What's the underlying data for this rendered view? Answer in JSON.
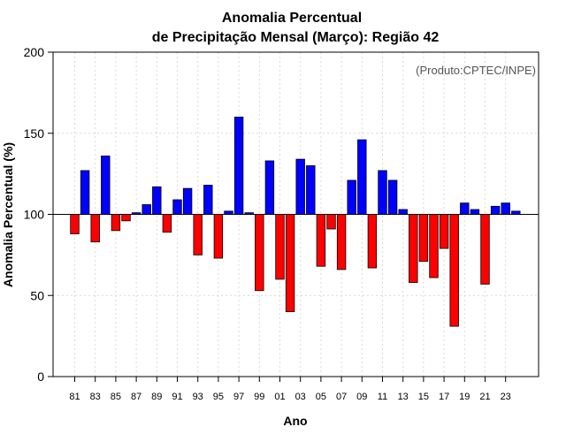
{
  "chart_data": {
    "type": "bar",
    "title_line1": "Anomalia Percentual",
    "title_line2": "de Precipitação Mensal (Março): Região 42",
    "xlabel": "Ano",
    "ylabel": "Anomalia Percentual (%)",
    "credit": "(Produto:CPTEC/INPE)",
    "baseline": 100,
    "ylim": [
      0,
      200
    ],
    "yticks": [
      0,
      50,
      100,
      150,
      200
    ],
    "xtick_labels": [
      "81",
      "83",
      "85",
      "87",
      "89",
      "91",
      "93",
      "95",
      "97",
      "99",
      "01",
      "03",
      "05",
      "07",
      "09",
      "11",
      "13",
      "15",
      "17",
      "19",
      "21",
      "23"
    ],
    "categories": [
      "1981",
      "1982",
      "1983",
      "1984",
      "1985",
      "1986",
      "1987",
      "1988",
      "1989",
      "1990",
      "1991",
      "1992",
      "1993",
      "1994",
      "1995",
      "1996",
      "1997",
      "1998",
      "1999",
      "2000",
      "2001",
      "2002",
      "2003",
      "2004",
      "2005",
      "2006",
      "2007",
      "2008",
      "2009",
      "2010",
      "2011",
      "2012",
      "2013",
      "2014",
      "2015",
      "2016",
      "2017",
      "2018",
      "2019",
      "2020",
      "2021",
      "2022",
      "2023",
      "2024"
    ],
    "values": [
      88,
      127,
      83,
      136,
      90,
      96,
      101,
      106,
      117,
      89,
      109,
      116,
      75,
      118,
      73,
      102,
      160,
      101,
      53,
      133,
      60,
      40,
      134,
      130,
      68,
      91,
      66,
      121,
      146,
      67,
      127,
      121,
      103,
      58,
      71,
      61,
      79,
      31,
      107,
      103,
      57,
      105,
      107,
      102
    ],
    "colors": {
      "above": "#0000ff",
      "below": "#ff0000",
      "edge": "#000000",
      "grid": "#d9d9d9"
    }
  }
}
